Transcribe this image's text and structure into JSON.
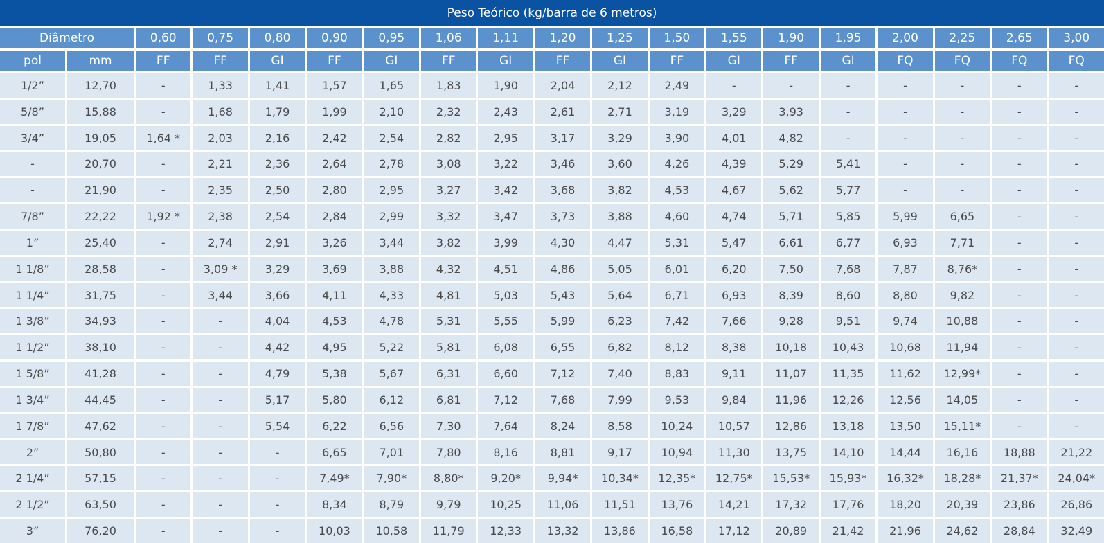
{
  "title": "Peso Teórico (kg/barra de 6 metros)",
  "colors": {
    "title_bg": "#0a53a3",
    "header_bg": "#5b92cd",
    "cell_bg": "#dce7f2",
    "cell_text": "#4a4a4a",
    "header_text": "#ffffff",
    "gap": "#ffffff"
  },
  "header": {
    "diameter_label": "Diâmetro",
    "pol_label": "pol",
    "mm_label": "mm",
    "columns": [
      {
        "thickness": "0,60",
        "material": "FF"
      },
      {
        "thickness": "0,75",
        "material": "FF"
      },
      {
        "thickness": "0,80",
        "material": "GI"
      },
      {
        "thickness": "0,90",
        "material": "FF"
      },
      {
        "thickness": "0,95",
        "material": "GI"
      },
      {
        "thickness": "1,06",
        "material": "FF"
      },
      {
        "thickness": "1,11",
        "material": "GI"
      },
      {
        "thickness": "1,20",
        "material": "FF"
      },
      {
        "thickness": "1,25",
        "material": "GI"
      },
      {
        "thickness": "1,50",
        "material": "FF"
      },
      {
        "thickness": "1,55",
        "material": "GI"
      },
      {
        "thickness": "1,90",
        "material": "FF"
      },
      {
        "thickness": "1,95",
        "material": "GI"
      },
      {
        "thickness": "2,00",
        "material": "FQ"
      },
      {
        "thickness": "2,25",
        "material": "FQ"
      },
      {
        "thickness": "2,65",
        "material": "FQ"
      },
      {
        "thickness": "3,00",
        "material": "FQ"
      }
    ]
  },
  "rows": [
    {
      "pol": "1/2”",
      "mm": "12,70",
      "values": [
        "-",
        "1,33",
        "1,41",
        "1,57",
        "1,65",
        "1,83",
        "1,90",
        "2,04",
        "2,12",
        "2,49",
        "-",
        "-",
        "-",
        "-",
        "-",
        "-",
        "-"
      ]
    },
    {
      "pol": "5/8”",
      "mm": "15,88",
      "values": [
        "-",
        "1,68",
        "1,79",
        "1,99",
        "2,10",
        "2,32",
        "2,43",
        "2,61",
        "2,71",
        "3,19",
        "3,29",
        "3,93",
        "-",
        "-",
        "-",
        "-",
        "-"
      ]
    },
    {
      "pol": "3/4”",
      "mm": "19,05",
      "values": [
        "1,64 *",
        "2,03",
        "2,16",
        "2,42",
        "2,54",
        "2,82",
        "2,95",
        "3,17",
        "3,29",
        "3,90",
        "4,01",
        "4,82",
        "-",
        "-",
        "-",
        "-",
        "-"
      ]
    },
    {
      "pol": "-",
      "mm": "20,70",
      "values": [
        "-",
        "2,21",
        "2,36",
        "2,64",
        "2,78",
        "3,08",
        "3,22",
        "3,46",
        "3,60",
        "4,26",
        "4,39",
        "5,29",
        "5,41",
        "-",
        "-",
        "-",
        "-"
      ]
    },
    {
      "pol": "-",
      "mm": "21,90",
      "values": [
        "-",
        "2,35",
        "2,50",
        "2,80",
        "2,95",
        "3,27",
        "3,42",
        "3,68",
        "3,82",
        "4,53",
        "4,67",
        "5,62",
        "5,77",
        "-",
        "-",
        "-",
        "-"
      ]
    },
    {
      "pol": "7/8”",
      "mm": "22,22",
      "values": [
        "1,92 *",
        "2,38",
        "2,54",
        "2,84",
        "2,99",
        "3,32",
        "3,47",
        "3,73",
        "3,88",
        "4,60",
        "4,74",
        "5,71",
        "5,85",
        "5,99",
        "6,65",
        "-",
        "-"
      ]
    },
    {
      "pol": "1”",
      "mm": "25,40",
      "values": [
        "-",
        "2,74",
        "2,91",
        "3,26",
        "3,44",
        "3,82",
        "3,99",
        "4,30",
        "4,47",
        "5,31",
        "5,47",
        "6,61",
        "6,77",
        "6,93",
        "7,71",
        "-",
        "-"
      ]
    },
    {
      "pol": "1 1/8”",
      "mm": "28,58",
      "values": [
        "-",
        "3,09 *",
        "3,29",
        "3,69",
        "3,88",
        "4,32",
        "4,51",
        "4,86",
        "5,05",
        "6,01",
        "6,20",
        "7,50",
        "7,68",
        "7,87",
        "8,76*",
        "-",
        "-"
      ]
    },
    {
      "pol": "1 1/4”",
      "mm": "31,75",
      "values": [
        "-",
        "3,44",
        "3,66",
        "4,11",
        "4,33",
        "4,81",
        "5,03",
        "5,43",
        "5,64",
        "6,71",
        "6,93",
        "8,39",
        "8,60",
        "8,80",
        "9,82",
        "-",
        "-"
      ]
    },
    {
      "pol": "1 3/8”",
      "mm": "34,93",
      "values": [
        "-",
        "-",
        "4,04",
        "4,53",
        "4,78",
        "5,31",
        "5,55",
        "5,99",
        "6,23",
        "7,42",
        "7,66",
        "9,28",
        "9,51",
        "9,74",
        "10,88",
        "-",
        "-"
      ]
    },
    {
      "pol": "1 1/2”",
      "mm": "38,10",
      "values": [
        "-",
        "-",
        "4,42",
        "4,95",
        "5,22",
        "5,81",
        "6,08",
        "6,55",
        "6,82",
        "8,12",
        "8,38",
        "10,18",
        "10,43",
        "10,68",
        "11,94",
        "-",
        "-"
      ]
    },
    {
      "pol": "1 5/8”",
      "mm": "41,28",
      "values": [
        "-",
        "-",
        "4,79",
        "5,38",
        "5,67",
        "6,31",
        "6,60",
        "7,12",
        "7,40",
        "8,83",
        "9,11",
        "11,07",
        "11,35",
        "11,62",
        "12,99*",
        "-",
        "-"
      ]
    },
    {
      "pol": "1 3/4”",
      "mm": "44,45",
      "values": [
        "-",
        "-",
        "5,17",
        "5,80",
        "6,12",
        "6,81",
        "7,12",
        "7,68",
        "7,99",
        "9,53",
        "9,84",
        "11,96",
        "12,26",
        "12,56",
        "14,05",
        "-",
        "-"
      ]
    },
    {
      "pol": "1 7/8”",
      "mm": "47,62",
      "values": [
        "-",
        "-",
        "5,54",
        "6,22",
        "6,56",
        "7,30",
        "7,64",
        "8,24",
        "8,58",
        "10,24",
        "10,57",
        "12,86",
        "13,18",
        "13,50",
        "15,11*",
        "-",
        "-"
      ]
    },
    {
      "pol": "2”",
      "mm": "50,80",
      "values": [
        "-",
        "-",
        "-",
        "6,65",
        "7,01",
        "7,80",
        "8,16",
        "8,81",
        "9,17",
        "10,94",
        "11,30",
        "13,75",
        "14,10",
        "14,44",
        "16,16",
        "18,88",
        "21,22"
      ]
    },
    {
      "pol": "2 1/4”",
      "mm": "57,15",
      "values": [
        "-",
        "-",
        "-",
        "7,49*",
        "7,90*",
        "8,80*",
        "9,20*",
        "9,94*",
        "10,34*",
        "12,35*",
        "12,75*",
        "15,53*",
        "15,93*",
        "16,32*",
        "18,28*",
        "21,37*",
        "24,04*"
      ]
    },
    {
      "pol": "2 1/2”",
      "mm": "63,50",
      "values": [
        "-",
        "-",
        "-",
        "8,34",
        "8,79",
        "9,79",
        "10,25",
        "11,06",
        "11,51",
        "13,76",
        "14,21",
        "17,32",
        "17,76",
        "18,20",
        "20,39",
        "23,86",
        "26,86"
      ]
    },
    {
      "pol": "3”",
      "mm": "76,20",
      "values": [
        "-",
        "-",
        "-",
        "10,03",
        "10,58",
        "11,79",
        "12,33",
        "13,32",
        "13,86",
        "16,58",
        "17,12",
        "20,89",
        "21,42",
        "21,96",
        "24,62",
        "28,84",
        "32,49"
      ]
    }
  ]
}
